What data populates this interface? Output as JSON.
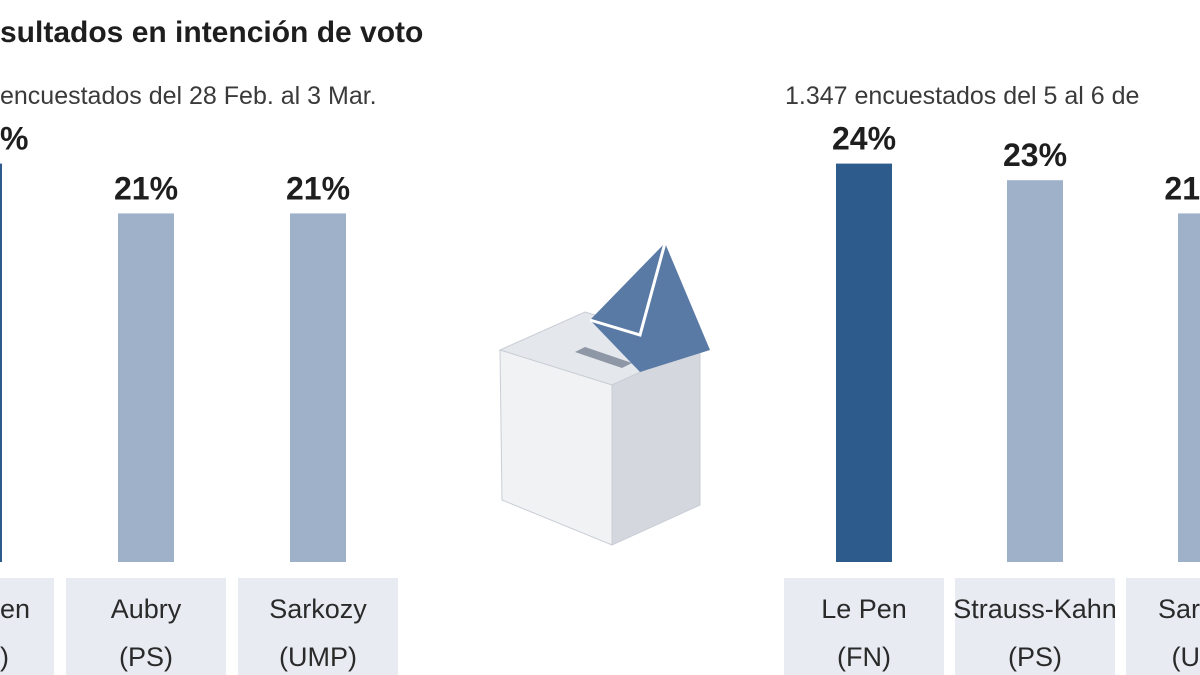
{
  "title": "sultados en intención de voto",
  "chart_data": [
    {
      "type": "bar",
      "subtitle": "encuestados del 28 Feb. al 3 Mar.",
      "categories": [
        [
          "en",
          ")"
        ],
        [
          "Aubry",
          "(PS)"
        ],
        [
          "Sarkozy",
          "(UMP)"
        ]
      ],
      "values": [
        24,
        21,
        21
      ],
      "value_labels": [
        "%",
        "21%",
        "21%"
      ],
      "colors": [
        "#2c5b8c",
        "#9fb0c9",
        "#9fb0c9"
      ]
    },
    {
      "type": "bar",
      "subtitle": "1.347 encuestados del 5 al 6 de",
      "categories": [
        [
          "Le Pen",
          "(FN)"
        ],
        [
          "Strauss-Kahn",
          "(PS)"
        ],
        [
          "Sar",
          "(U"
        ]
      ],
      "values": [
        24,
        23,
        21
      ],
      "value_labels": [
        "24%",
        "23%",
        "21"
      ],
      "colors": [
        "#2c5b8c",
        "#9fb0c9",
        "#9fb0c9"
      ]
    }
  ]
}
